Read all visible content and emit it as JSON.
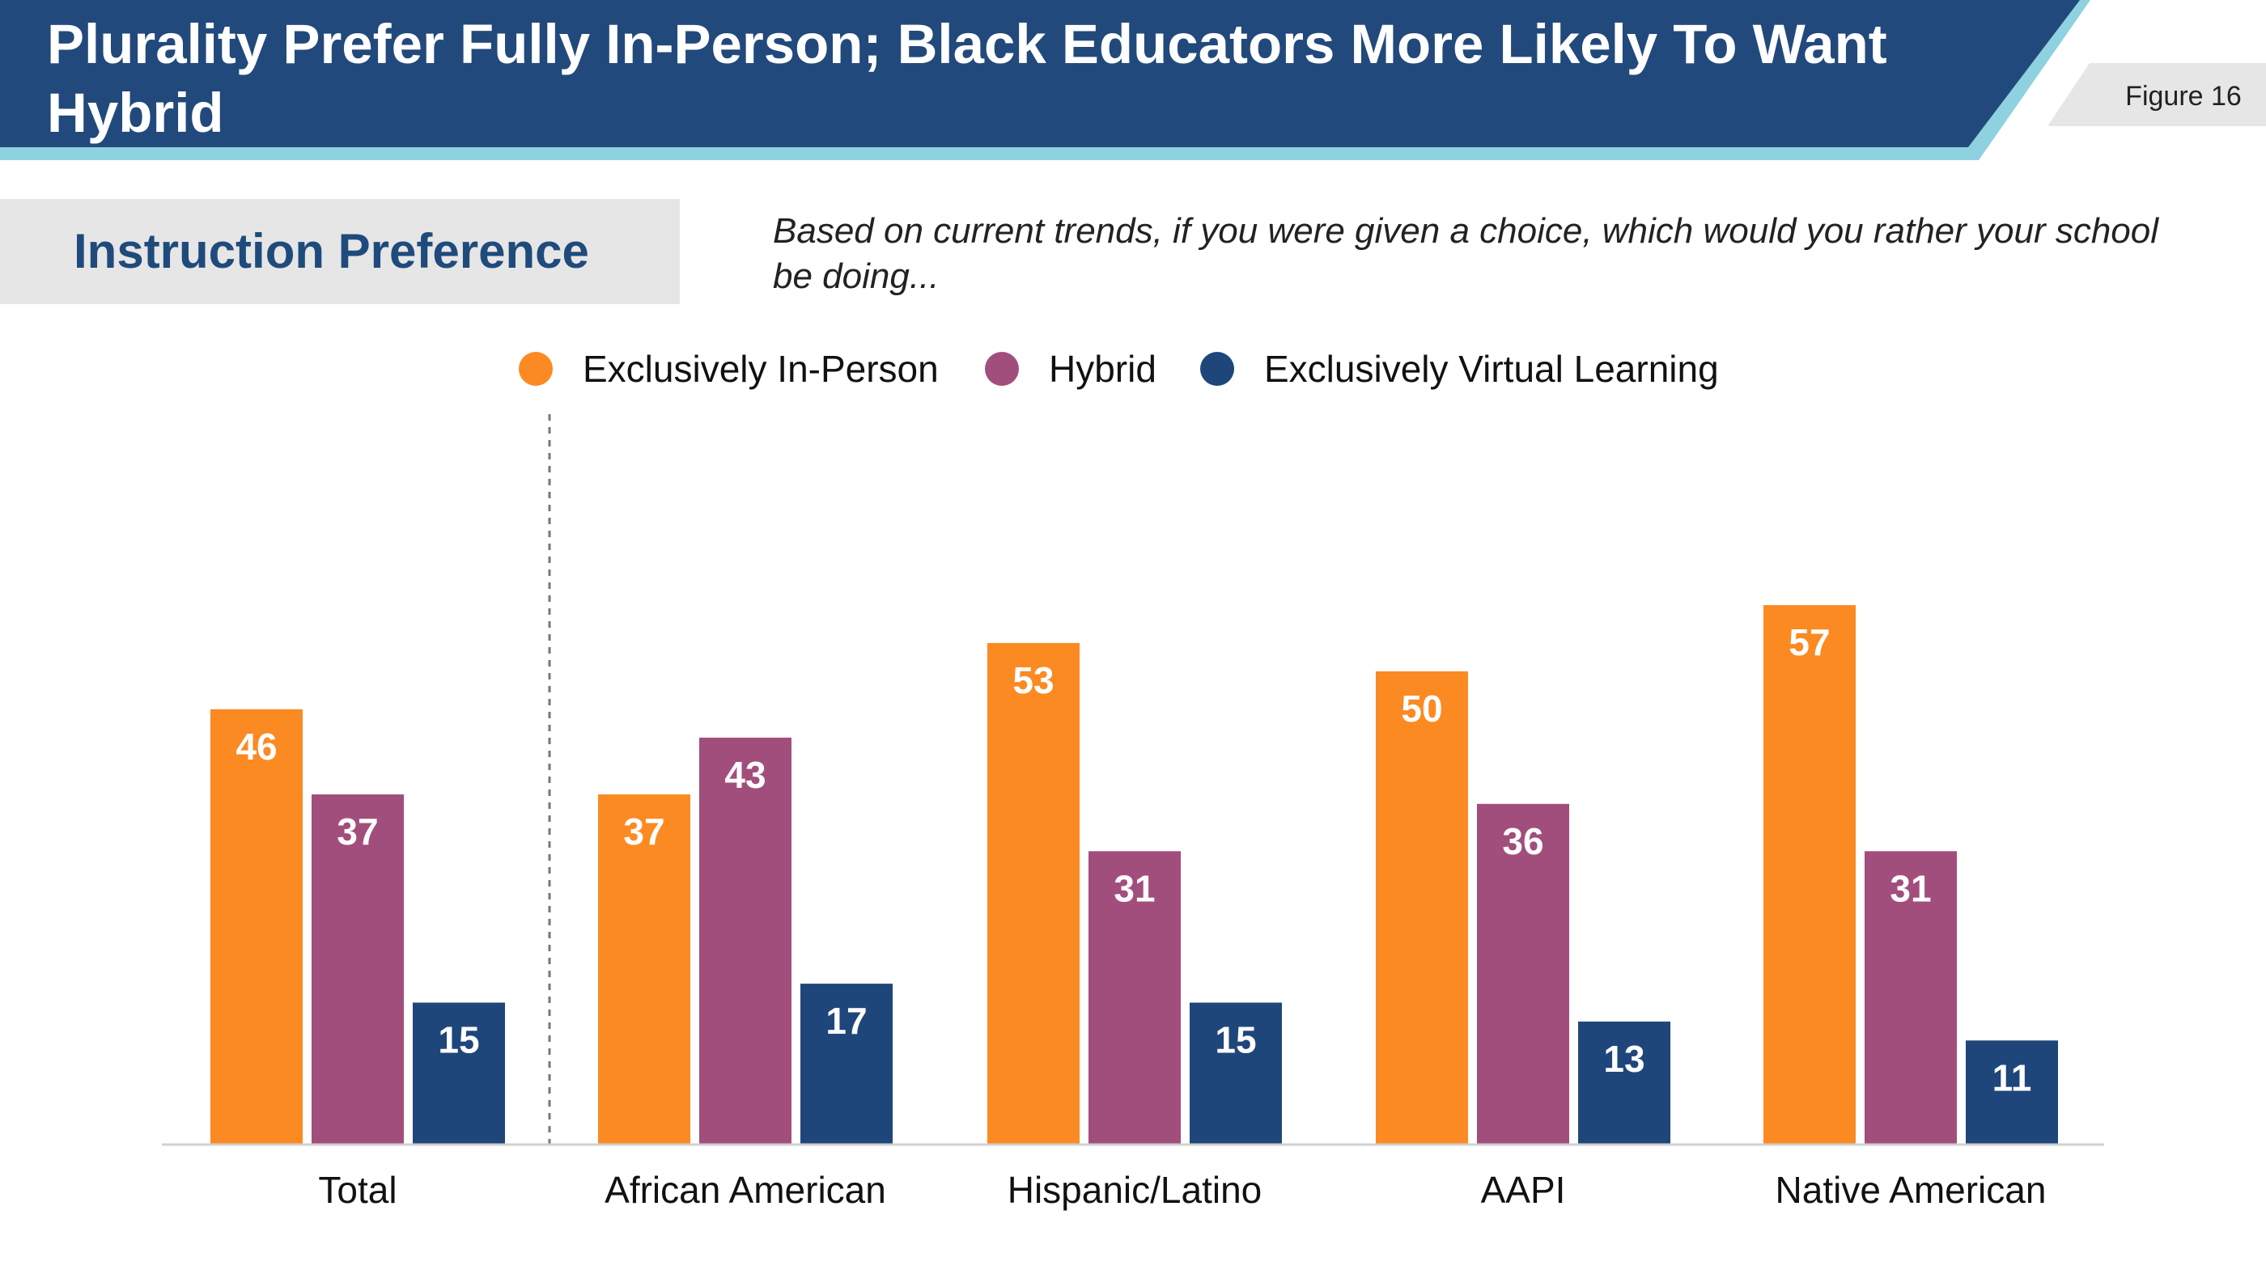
{
  "header": {
    "title_line1": "Plurality Prefer Fully In-Person; Black Educators More Likely To Want",
    "title_line2": "Hybrid",
    "figure_label": "Figure 16"
  },
  "section": {
    "title": "Instruction Preference",
    "question": "Based on current trends, if you were given a choice, which would you rather your school be doing..."
  },
  "colors": {
    "header_bg": "#22497c",
    "header_accent": "#8ed1e0",
    "figure_tab": "#e6e6e6"
  },
  "chart_data": {
    "type": "bar",
    "title": "Instruction Preference",
    "categories": [
      "Total",
      "African American",
      "Hispanic/Latino",
      "AAPI",
      "Native American"
    ],
    "series": [
      {
        "name": "Exclusively In-Person",
        "color": "#fb8a22",
        "values": [
          46,
          37,
          53,
          50,
          57
        ]
      },
      {
        "name": "Hybrid",
        "color": "#a24e7c",
        "values": [
          37,
          43,
          31,
          36,
          31
        ]
      },
      {
        "name": "Exclusively Virtual Learning",
        "color": "#1f467a",
        "values": [
          15,
          17,
          15,
          13,
          11
        ]
      }
    ],
    "ylim": [
      0,
      100
    ],
    "xlabel": "",
    "ylabel": "",
    "grid": false,
    "legend": "top-center",
    "separator_after": "Total"
  }
}
